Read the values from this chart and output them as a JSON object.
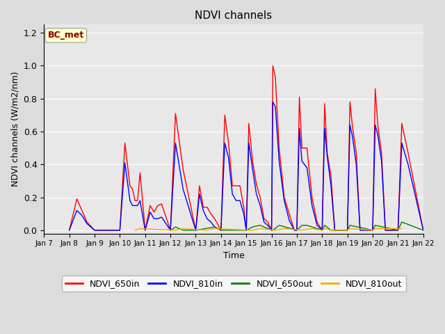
{
  "title": "NDVI channels",
  "xlabel": "Time",
  "ylabel": "NDVI channels (W/m2/nm)",
  "ylim": [
    -0.02,
    1.25
  ],
  "background_color": "#dcdcdc",
  "plot_bg_color": "#e8e8e8",
  "annotation_text": "BC_met",
  "annotation_color": "#8b0000",
  "annotation_bg": "#ffffcc",
  "legend_entries": [
    "NDVI_650in",
    "NDVI_810in",
    "NDVI_650out",
    "NDVI_810out"
  ],
  "legend_colors": [
    "red",
    "blue",
    "green",
    "orange"
  ],
  "xtick_labels": [
    "Jan 7",
    "Jan 8",
    "Jan 9",
    "Jan 10",
    "Jan 11",
    "Jan 12",
    "Jan 13",
    "Jan 14",
    "Jan 15",
    "Jan 16",
    "Jan 17",
    "Jan 18",
    "Jan 19",
    "Jan 20",
    "Jan 21",
    "Jan 22"
  ],
  "series": {
    "NDVI_650in": {
      "color": "red",
      "x": [
        1.0,
        1.3,
        1.5,
        1.7,
        2.0,
        3.0,
        3.2,
        3.4,
        3.5,
        3.6,
        3.7,
        3.8,
        4.0,
        4.0,
        4.2,
        4.35,
        4.5,
        4.65,
        5.0,
        5.0,
        5.2,
        5.5,
        6.0,
        6.0,
        6.15,
        6.3,
        6.45,
        6.6,
        6.75,
        7.0,
        7.0,
        7.15,
        7.3,
        7.45,
        7.6,
        7.75,
        7.9,
        8.0,
        8.0,
        8.1,
        8.25,
        8.4,
        8.55,
        8.7,
        8.85,
        9.0,
        9.0,
        9.05,
        9.15,
        9.3,
        9.5,
        9.7,
        9.9,
        10.0,
        10.0,
        10.1,
        10.2,
        10.4,
        10.6,
        10.8,
        11.0,
        11.0,
        11.1,
        11.2,
        11.35,
        11.5,
        12.0,
        12.0,
        12.1,
        12.2,
        12.35,
        12.5,
        13.0,
        13.0,
        13.1,
        13.2,
        13.35,
        13.5,
        14.0,
        14.0,
        14.15,
        14.4,
        15.0
      ],
      "y": [
        0.0,
        0.19,
        0.12,
        0.05,
        0.0,
        0.0,
        0.53,
        0.27,
        0.25,
        0.18,
        0.18,
        0.35,
        0.0,
        0.0,
        0.15,
        0.11,
        0.15,
        0.16,
        0.0,
        0.0,
        0.71,
        0.37,
        0.0,
        0.0,
        0.27,
        0.14,
        0.14,
        0.1,
        0.07,
        0.0,
        0.0,
        0.7,
        0.53,
        0.27,
        0.27,
        0.27,
        0.14,
        0.0,
        0.0,
        0.65,
        0.42,
        0.28,
        0.2,
        0.07,
        0.05,
        0.0,
        0.0,
        1.0,
        0.93,
        0.5,
        0.2,
        0.1,
        0.0,
        0.0,
        0.0,
        0.81,
        0.5,
        0.5,
        0.2,
        0.05,
        0.0,
        0.0,
        0.77,
        0.47,
        0.33,
        0.0,
        0.0,
        0.0,
        0.78,
        0.63,
        0.47,
        0.0,
        0.0,
        0.0,
        0.86,
        0.64,
        0.47,
        0.0,
        0.0,
        0.0,
        0.65,
        0.47,
        0.0
      ]
    },
    "NDVI_810in": {
      "color": "blue",
      "x": [
        1.0,
        1.3,
        1.5,
        1.7,
        2.0,
        3.0,
        3.2,
        3.4,
        3.5,
        3.6,
        3.7,
        3.8,
        4.0,
        4.0,
        4.2,
        4.35,
        4.5,
        4.65,
        5.0,
        5.0,
        5.2,
        5.5,
        6.0,
        6.0,
        6.15,
        6.3,
        6.45,
        6.6,
        6.75,
        7.0,
        7.0,
        7.15,
        7.3,
        7.45,
        7.6,
        7.75,
        7.9,
        8.0,
        8.0,
        8.1,
        8.25,
        8.4,
        8.55,
        8.7,
        8.85,
        9.0,
        9.0,
        9.05,
        9.15,
        9.3,
        9.5,
        9.7,
        9.9,
        10.0,
        10.0,
        10.1,
        10.2,
        10.4,
        10.6,
        10.8,
        11.0,
        11.0,
        11.1,
        11.2,
        11.35,
        11.5,
        12.0,
        12.0,
        12.1,
        12.2,
        12.35,
        12.5,
        13.0,
        13.0,
        13.1,
        13.2,
        13.35,
        13.5,
        14.0,
        14.0,
        14.15,
        14.4,
        15.0
      ],
      "y": [
        0.0,
        0.12,
        0.09,
        0.04,
        0.0,
        0.0,
        0.41,
        0.18,
        0.15,
        0.15,
        0.15,
        0.18,
        0.0,
        0.0,
        0.11,
        0.07,
        0.07,
        0.08,
        0.0,
        0.0,
        0.53,
        0.25,
        0.0,
        0.0,
        0.22,
        0.12,
        0.07,
        0.05,
        0.02,
        0.0,
        0.0,
        0.53,
        0.44,
        0.22,
        0.18,
        0.18,
        0.1,
        0.0,
        0.0,
        0.53,
        0.37,
        0.22,
        0.15,
        0.05,
        0.03,
        0.0,
        0.0,
        0.78,
        0.75,
        0.42,
        0.18,
        0.06,
        0.0,
        0.0,
        0.0,
        0.62,
        0.42,
        0.38,
        0.15,
        0.03,
        0.0,
        0.0,
        0.62,
        0.45,
        0.27,
        0.0,
        0.0,
        0.0,
        0.64,
        0.57,
        0.4,
        0.0,
        0.0,
        0.0,
        0.64,
        0.58,
        0.42,
        0.0,
        0.0,
        0.0,
        0.53,
        0.4,
        0.0
      ]
    },
    "NDVI_650out": {
      "color": "green",
      "x": [
        5.0,
        5.2,
        5.5,
        6.0,
        6.75,
        7.0,
        8.0,
        8.25,
        8.55,
        9.0,
        9.05,
        9.3,
        10.0,
        10.2,
        10.4,
        11.0,
        11.1,
        11.35,
        12.0,
        12.1,
        13.0,
        13.1,
        14.0,
        14.15,
        15.0
      ],
      "y": [
        0.0,
        0.02,
        0.0,
        0.0,
        0.02,
        0.0,
        0.0,
        0.02,
        0.03,
        0.0,
        0.0,
        0.03,
        0.0,
        0.03,
        0.03,
        0.0,
        0.03,
        0.0,
        0.0,
        0.03,
        0.0,
        0.03,
        0.0,
        0.05,
        0.0
      ]
    },
    "NDVI_810out": {
      "color": "orange",
      "x": [
        3.6,
        3.8,
        5.2,
        5.5,
        6.45,
        6.75,
        8.25,
        8.55,
        9.15,
        9.5,
        10.2,
        10.6,
        11.0,
        11.1,
        11.35,
        12.0,
        12.1,
        13.0,
        13.1,
        14.15
      ],
      "y": [
        0.0,
        0.01,
        0.0,
        0.01,
        0.0,
        0.01,
        0.0,
        0.01,
        0.0,
        0.01,
        0.0,
        0.01,
        0.0,
        0.01,
        0.0,
        0.0,
        0.01,
        0.0,
        0.01,
        0.01
      ]
    }
  }
}
